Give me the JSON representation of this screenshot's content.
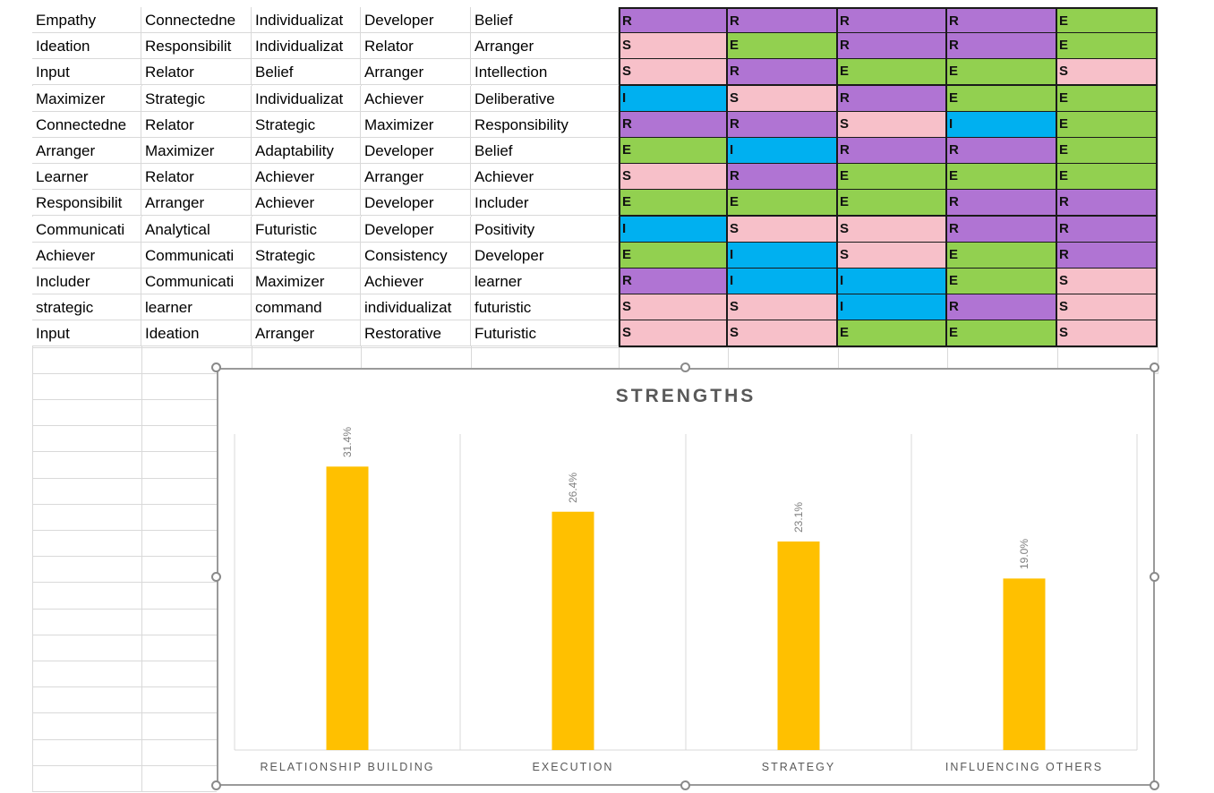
{
  "sheet": {
    "rows": [
      {
        "strengths": [
          "Empathy",
          "Connectedne",
          "Individualizat",
          "Developer",
          "Belief"
        ],
        "codes": [
          "R",
          "R",
          "R",
          "R",
          "E"
        ]
      },
      {
        "strengths": [
          "Ideation",
          "Responsibilit",
          "Individualizat",
          "Relator",
          "Arranger"
        ],
        "codes": [
          "S",
          "E",
          "R",
          "R",
          "E"
        ]
      },
      {
        "strengths": [
          "Input",
          "Relator",
          "Belief",
          "Arranger",
          "Intellection"
        ],
        "codes": [
          "S",
          "R",
          "E",
          "E",
          "S"
        ]
      },
      {
        "strengths": [
          "Maximizer",
          "Strategic",
          "Individualizat",
          "Achiever",
          "Deliberative"
        ],
        "codes": [
          "I",
          "S",
          "R",
          "E",
          "E"
        ]
      },
      {
        "strengths": [
          "Connectedne",
          "Relator",
          "Strategic",
          "Maximizer",
          "Responsibility"
        ],
        "codes": [
          "R",
          "R",
          "S",
          "I",
          "E"
        ]
      },
      {
        "strengths": [
          "Arranger",
          "Maximizer",
          "Adaptability",
          "Developer",
          "Belief"
        ],
        "codes": [
          "E",
          "I",
          "R",
          "R",
          "E"
        ]
      },
      {
        "strengths": [
          "Learner",
          "Relator",
          "Achiever",
          "Arranger",
          "Achiever"
        ],
        "codes": [
          "S",
          "R",
          "E",
          "E",
          "E"
        ]
      },
      {
        "strengths": [
          "Responsibilit",
          "Arranger",
          "Achiever",
          "Developer",
          "Includer"
        ],
        "codes": [
          "E",
          "E",
          "E",
          "R",
          "R"
        ]
      },
      {
        "strengths": [
          "Communicati",
          "Analytical",
          "Futuristic",
          "Developer",
          "Positivity"
        ],
        "codes": [
          "I",
          "S",
          "S",
          "R",
          "R"
        ]
      },
      {
        "strengths": [
          "Achiever",
          "Communicati",
          "Strategic",
          "Consistency",
          "Developer"
        ],
        "codes": [
          "E",
          "I",
          "S",
          "E",
          "R"
        ]
      },
      {
        "strengths": [
          "Includer",
          "Communicati",
          "Maximizer",
          "Achiever",
          "learner"
        ],
        "codes": [
          "R",
          "I",
          "I",
          "E",
          "S"
        ]
      },
      {
        "strengths": [
          "strategic",
          "learner",
          "command",
          "individualizat",
          "futuristic"
        ],
        "codes": [
          "S",
          "S",
          "I",
          "R",
          "S"
        ]
      },
      {
        "strengths": [
          "Input",
          "Ideation",
          "Arranger",
          "Restorative",
          "Futuristic"
        ],
        "codes": [
          "S",
          "S",
          "E",
          "E",
          "S"
        ]
      }
    ],
    "code_colors": {
      "R": "#b074d3",
      "E": "#92d050",
      "S": "#f7c0c9",
      "I": "#00b0f0"
    }
  },
  "chart_data": {
    "type": "bar",
    "title": "STRENGTHS",
    "categories": [
      "RELATIONSHIP BUILDING",
      "EXECUTION",
      "STRATEGY",
      "INFLUENCING OTHERS"
    ],
    "values": [
      31.4,
      26.4,
      23.1,
      19.0
    ],
    "value_labels": [
      "31.4%",
      "26.4%",
      "23.1%",
      "19.0%"
    ],
    "ylim": [
      0,
      35
    ],
    "xlabel": "",
    "ylabel": "",
    "grid": "vertical-category-separators",
    "legend": "none",
    "bar_color": "#ffc000"
  }
}
